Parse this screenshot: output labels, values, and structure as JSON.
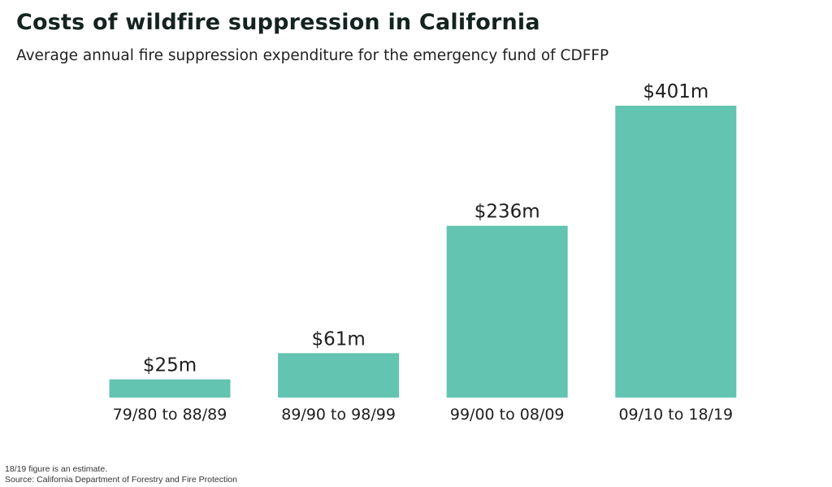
{
  "title": "Costs of wildfire suppression in California",
  "subtitle": "Average annual fire suppression expenditure for the emergency fund of CDFFP",
  "note": "18/19 figure is an estimate.",
  "source": "Source: California Department of Forestry and Fire Protection",
  "colors": {
    "bar": "#62c4b1",
    "text": "#1e1e1e",
    "title": "#152320"
  },
  "chart_data": {
    "type": "bar",
    "categories": [
      "79/80 to 88/89",
      "89/90 to 98/99",
      "99/00 to 08/09",
      "09/10 to 18/19"
    ],
    "values": [
      25,
      61,
      236,
      401
    ],
    "value_labels": [
      "$25m",
      "$61m",
      "$236m",
      "$401m"
    ],
    "title": "Costs of wildfire suppression in California",
    "subtitle": "Average annual fire suppression expenditure for the emergency fund of CDFFP",
    "xlabel": "",
    "ylabel": "",
    "ylim": [
      0,
      401
    ],
    "grid": false,
    "legend": "none"
  }
}
